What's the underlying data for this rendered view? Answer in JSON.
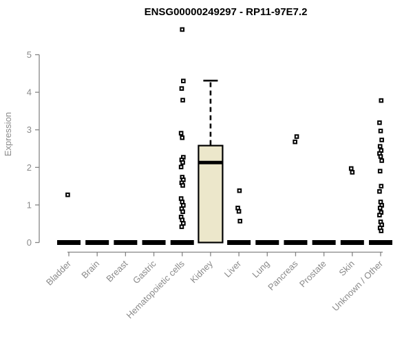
{
  "chart_data": {
    "type": "boxplot",
    "title": "ENSG00000249297 - RP11-97E7.2",
    "ylabel": "Expression",
    "xlabel": "",
    "ylim": [
      0,
      5
    ],
    "yticks": [
      0,
      1,
      2,
      3,
      4,
      5
    ],
    "grid": false,
    "legend": "none",
    "categories": [
      "Bladder",
      "Brain",
      "Breast",
      "Gastric",
      "Hematopoietic cells",
      "Kidney",
      "Liver",
      "Lung",
      "Pancreas",
      "Prostate",
      "Skin",
      "Unknown / Other"
    ],
    "boxes": [
      {
        "category": "Bladder",
        "whisker_low": 0,
        "q1": 0,
        "median": 0,
        "q3": 0,
        "whisker_high": 0,
        "outliers": [
          1.27
        ]
      },
      {
        "category": "Brain",
        "whisker_low": 0,
        "q1": 0,
        "median": 0,
        "q3": 0,
        "whisker_high": 0,
        "outliers": []
      },
      {
        "category": "Breast",
        "whisker_low": 0,
        "q1": 0,
        "median": 0,
        "q3": 0,
        "whisker_high": 0,
        "outliers": []
      },
      {
        "category": "Gastric",
        "whisker_low": 0,
        "q1": 0,
        "median": 0,
        "q3": 0,
        "whisker_high": 0,
        "outliers": []
      },
      {
        "category": "Hematopoietic cells",
        "whisker_low": 0,
        "q1": 0,
        "median": 0,
        "q3": 0,
        "whisker_high": 0,
        "outliers": [
          5.67,
          4.3,
          4.1,
          3.79,
          2.91,
          2.79,
          2.27,
          2.2,
          2.13,
          2.01,
          1.74,
          1.67,
          1.59,
          1.52,
          1.17,
          1.08,
          0.99,
          0.9,
          0.82,
          0.68,
          0.6,
          0.51,
          0.42
        ]
      },
      {
        "category": "Kidney",
        "whisker_low": 0,
        "q1": 0,
        "median": 2.13,
        "q3": 2.58,
        "whisker_high": 4.31,
        "outliers": []
      },
      {
        "category": "Liver",
        "whisker_low": 0,
        "q1": 0,
        "median": 0,
        "q3": 0,
        "whisker_high": 0,
        "outliers": [
          1.38,
          0.92,
          0.83,
          0.57
        ]
      },
      {
        "category": "Lung",
        "whisker_low": 0,
        "q1": 0,
        "median": 0,
        "q3": 0,
        "whisker_high": 0,
        "outliers": []
      },
      {
        "category": "Pancreas",
        "whisker_low": 0,
        "q1": 0,
        "median": 0,
        "q3": 0,
        "whisker_high": 0,
        "outliers": [
          2.82,
          2.68
        ]
      },
      {
        "category": "Prostate",
        "whisker_low": 0,
        "q1": 0,
        "median": 0,
        "q3": 0,
        "whisker_high": 0,
        "outliers": []
      },
      {
        "category": "Skin",
        "whisker_low": 0,
        "q1": 0,
        "median": 0,
        "q3": 0,
        "whisker_high": 0,
        "outliers": [
          1.97,
          1.87
        ]
      },
      {
        "category": "Unknown / Other",
        "whisker_low": 0,
        "q1": 0,
        "median": 0,
        "q3": 0,
        "whisker_high": 0,
        "outliers": [
          3.78,
          3.19,
          2.97,
          2.73,
          2.56,
          2.45,
          2.37,
          2.29,
          2.18,
          1.9,
          1.5,
          1.36,
          1.08,
          0.99,
          0.92,
          0.8,
          0.73,
          0.55,
          0.47,
          0.39,
          0.31
        ]
      }
    ],
    "colors": {
      "box_fill": "#ECE7CB",
      "box_stroke": "#000000",
      "median_color": "#000000",
      "point_stroke": "#000000",
      "point_fill": "#ffffff",
      "axis_color": "#848484",
      "tick_label_color": "#8a8a8a",
      "title_color": "#000000",
      "background": "#ffffff"
    }
  }
}
